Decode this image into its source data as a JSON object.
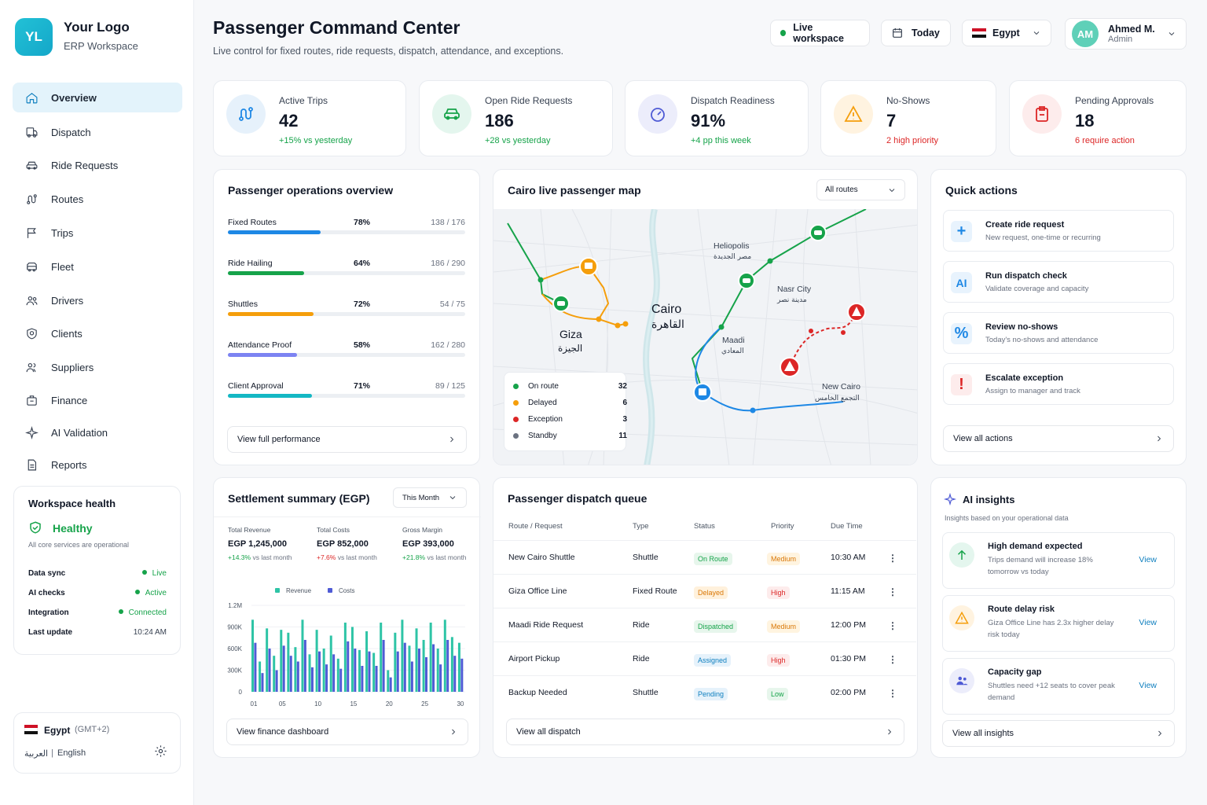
{
  "brand": {
    "initials": "YL",
    "name": "Your Logo",
    "subtitle": "ERP Workspace"
  },
  "nav": [
    {
      "label": "Overview",
      "icon": "home-icon",
      "active": true
    },
    {
      "label": "Dispatch",
      "icon": "dispatch-icon"
    },
    {
      "label": "Ride Requests",
      "icon": "car-icon"
    },
    {
      "label": "Routes",
      "icon": "route-icon"
    },
    {
      "label": "Trips",
      "icon": "flag-icon"
    },
    {
      "label": "Fleet",
      "icon": "bus-icon"
    },
    {
      "label": "Drivers",
      "icon": "users-icon"
    },
    {
      "label": "Clients",
      "icon": "target-icon"
    },
    {
      "label": "Suppliers",
      "icon": "people-icon"
    },
    {
      "label": "Finance",
      "icon": "wallet-icon"
    },
    {
      "label": "AI Validation",
      "icon": "sparkle-icon"
    },
    {
      "label": "Reports",
      "icon": "document-icon"
    }
  ],
  "health": {
    "title": "Workspace health",
    "status": "Healthy",
    "note": "All core services are operational",
    "rows": [
      {
        "label": "Data sync",
        "value": "Live"
      },
      {
        "label": "AI checks",
        "value": "Active"
      },
      {
        "label": "Integration",
        "value": "Connected"
      },
      {
        "label": "Last update",
        "value": "10:24 AM"
      }
    ]
  },
  "locale": {
    "country": "Egypt",
    "tz": "(GMT+2)",
    "arabic": "العربية",
    "sep": "|",
    "english": "English"
  },
  "header": {
    "title": "Passenger Command Center",
    "subtitle": "Live control for fixed routes, ride requests, dispatch, attendance, and exceptions.",
    "workspace": "Live workspace",
    "date": "Today",
    "country": "Egypt",
    "user_initials": "AM",
    "user_name": "Ahmed M.",
    "user_role": "Admin"
  },
  "kpis": [
    {
      "label": "Active Trips",
      "value": "42",
      "delta": "+15% vs yesterday"
    },
    {
      "label": "Open Ride Requests",
      "value": "186",
      "delta": "+28 vs yesterday"
    },
    {
      "label": "Dispatch Readiness",
      "value": "91%",
      "delta": "+4 pp this week"
    },
    {
      "label": "No-Shows",
      "value": "7",
      "delta": "2 high priority"
    },
    {
      "label": "Pending Approvals",
      "value": "18",
      "delta": "6 require action"
    }
  ],
  "ops": {
    "title": "Passenger operations overview",
    "rows": [
      {
        "label": "Fixed Routes",
        "pct": "78%",
        "count": "138 / 176",
        "fill": 0.78,
        "color": "#1e88e5"
      },
      {
        "label": "Ride Hailing",
        "pct": "64%",
        "count": "186 / 290",
        "fill": 0.64,
        "color": "#16a34a"
      },
      {
        "label": "Shuttles",
        "pct": "72%",
        "count": "54 / 75",
        "fill": 0.72,
        "color": "#f59e0b"
      },
      {
        "label": "Attendance Proof",
        "pct": "58%",
        "count": "162 / 280",
        "fill": 0.58,
        "color": "#7c83f2"
      },
      {
        "label": "Client Approval",
        "pct": "71%",
        "count": "89 / 125",
        "fill": 0.71,
        "color": "#14b8c4"
      }
    ],
    "button": "View full performance"
  },
  "map": {
    "title": "Cairo live passenger map",
    "filter": "All routes",
    "labels": {
      "cairo": "Cairo",
      "cairo_ar": "القاهرة",
      "giza": "Giza",
      "giza_ar": "الجيزة",
      "heliopolis": "Heliopolis",
      "heliopolis_ar": "مصر الجديدة",
      "nasr": "Nasr City",
      "nasr_ar": "مدينة نصر",
      "maadi": "Maadi",
      "maadi_ar": "المعادي",
      "newcairo": "New Cairo",
      "newcairo_ar": "التجمع الخامس"
    },
    "legend": [
      {
        "label": "On route",
        "count": "32",
        "color": "#16a34a"
      },
      {
        "label": "Delayed",
        "count": "6",
        "color": "#f59e0b"
      },
      {
        "label": "Exception",
        "count": "3",
        "color": "#dc2626"
      },
      {
        "label": "Standby",
        "count": "11",
        "color": "#6b7280"
      }
    ]
  },
  "quick": {
    "title": "Quick actions",
    "items": [
      {
        "icon": "+",
        "title": "Create ride request",
        "sub": "New request, one-time or recurring",
        "color": "#1e88e5",
        "bg": "#e8f3fd"
      },
      {
        "icon": "AI",
        "title": "Run dispatch check",
        "sub": "Validate coverage and capacity",
        "color": "#1e88e5",
        "bg": "#e8f3fd"
      },
      {
        "icon": "%",
        "title": "Review no-shows",
        "sub": "Today's no-shows and attendance",
        "color": "#1e88e5",
        "bg": "#e8f3fd"
      },
      {
        "icon": "!",
        "title": "Escalate exception",
        "sub": "Assign to manager and track",
        "color": "#dc2626",
        "bg": "#fdecec"
      }
    ],
    "button": "View all actions"
  },
  "settlement": {
    "title": "Settlement summary (EGP)",
    "period": "This Month",
    "stats": [
      {
        "label": "Total Revenue",
        "value": "EGP 1,245,000",
        "delta": "+14.3%",
        "note": "vs last month"
      },
      {
        "label": "Total Costs",
        "value": "EGP 852,000",
        "delta": "+7.6%",
        "note": "vs last month"
      },
      {
        "label": "Gross Margin",
        "value": "EGP 393,000",
        "delta": "+21.8%",
        "note": "vs last month"
      }
    ],
    "button": "View finance dashboard"
  },
  "chart_data": {
    "type": "bar",
    "series": [
      {
        "name": "Revenue",
        "color": "#2ec4a6",
        "values": [
          1000000,
          420000,
          880000,
          500000,
          860000,
          820000,
          620000,
          1000000,
          520000,
          860000,
          600000,
          780000,
          460000,
          960000,
          900000,
          580000,
          840000,
          540000,
          960000,
          300000,
          820000,
          1000000,
          640000,
          880000,
          720000,
          960000,
          600000,
          1000000,
          760000,
          680000
        ]
      },
      {
        "name": "Costs",
        "color": "#4f5bd5",
        "values": [
          680000,
          260000,
          600000,
          300000,
          640000,
          500000,
          420000,
          720000,
          340000,
          560000,
          380000,
          520000,
          320000,
          700000,
          600000,
          360000,
          560000,
          360000,
          720000,
          200000,
          560000,
          680000,
          420000,
          600000,
          480000,
          660000,
          380000,
          720000,
          500000,
          460000
        ]
      }
    ],
    "x_ticks": [
      "01",
      "05",
      "10",
      "15",
      "20",
      "25",
      "30"
    ],
    "y_ticks": [
      "0",
      "300K",
      "600K",
      "900K",
      "1.2M"
    ],
    "ylim": [
      0,
      1200000
    ]
  },
  "queue": {
    "title": "Passenger dispatch queue",
    "headers": [
      "Route / Request",
      "Type",
      "Status",
      "Priority",
      "Due Time"
    ],
    "rows": [
      {
        "route": "New Cairo Shuttle",
        "type": "Shuttle",
        "status": "On Route",
        "priority": "Medium",
        "due": "10:30 AM",
        "sc": "#16a34a",
        "sb": "#e7f6ec",
        "pc": "#d97706",
        "pb": "#fff4e0"
      },
      {
        "route": "Giza Office Line",
        "type": "Fixed Route",
        "status": "Delayed",
        "priority": "High",
        "due": "11:15 AM",
        "sc": "#d97706",
        "sb": "#fff1dc",
        "pc": "#dc2626",
        "pb": "#fdecec"
      },
      {
        "route": "Maadi Ride Request",
        "type": "Ride",
        "status": "Dispatched",
        "priority": "Medium",
        "due": "12:00 PM",
        "sc": "#16a34a",
        "sb": "#e7f6ec",
        "pc": "#d97706",
        "pb": "#fff4e0"
      },
      {
        "route": "Airport Pickup",
        "type": "Ride",
        "status": "Assigned",
        "priority": "High",
        "due": "01:30 PM",
        "sc": "#0e7fbf",
        "sb": "#e6f2fb",
        "pc": "#dc2626",
        "pb": "#fdecec"
      },
      {
        "route": "Backup Needed",
        "type": "Shuttle",
        "status": "Pending",
        "priority": "Low",
        "due": "02:00 PM",
        "sc": "#0e7fbf",
        "sb": "#e6f2fb",
        "pc": "#16a34a",
        "pb": "#e7f6ec"
      }
    ],
    "button": "View all dispatch"
  },
  "insights": {
    "title": "AI insights",
    "sub": "Insights based on your operational data",
    "items": [
      {
        "title": "High demand expected",
        "sub": "Trips demand will increase 18% tomorrow vs today",
        "link": "View"
      },
      {
        "title": "Route delay risk",
        "sub": "Giza Office Line has 2.3x higher delay risk today",
        "link": "View"
      },
      {
        "title": "Capacity gap",
        "sub": "Shuttles need +12 seats to cover peak demand",
        "link": "View"
      }
    ],
    "button": "View all insights"
  }
}
